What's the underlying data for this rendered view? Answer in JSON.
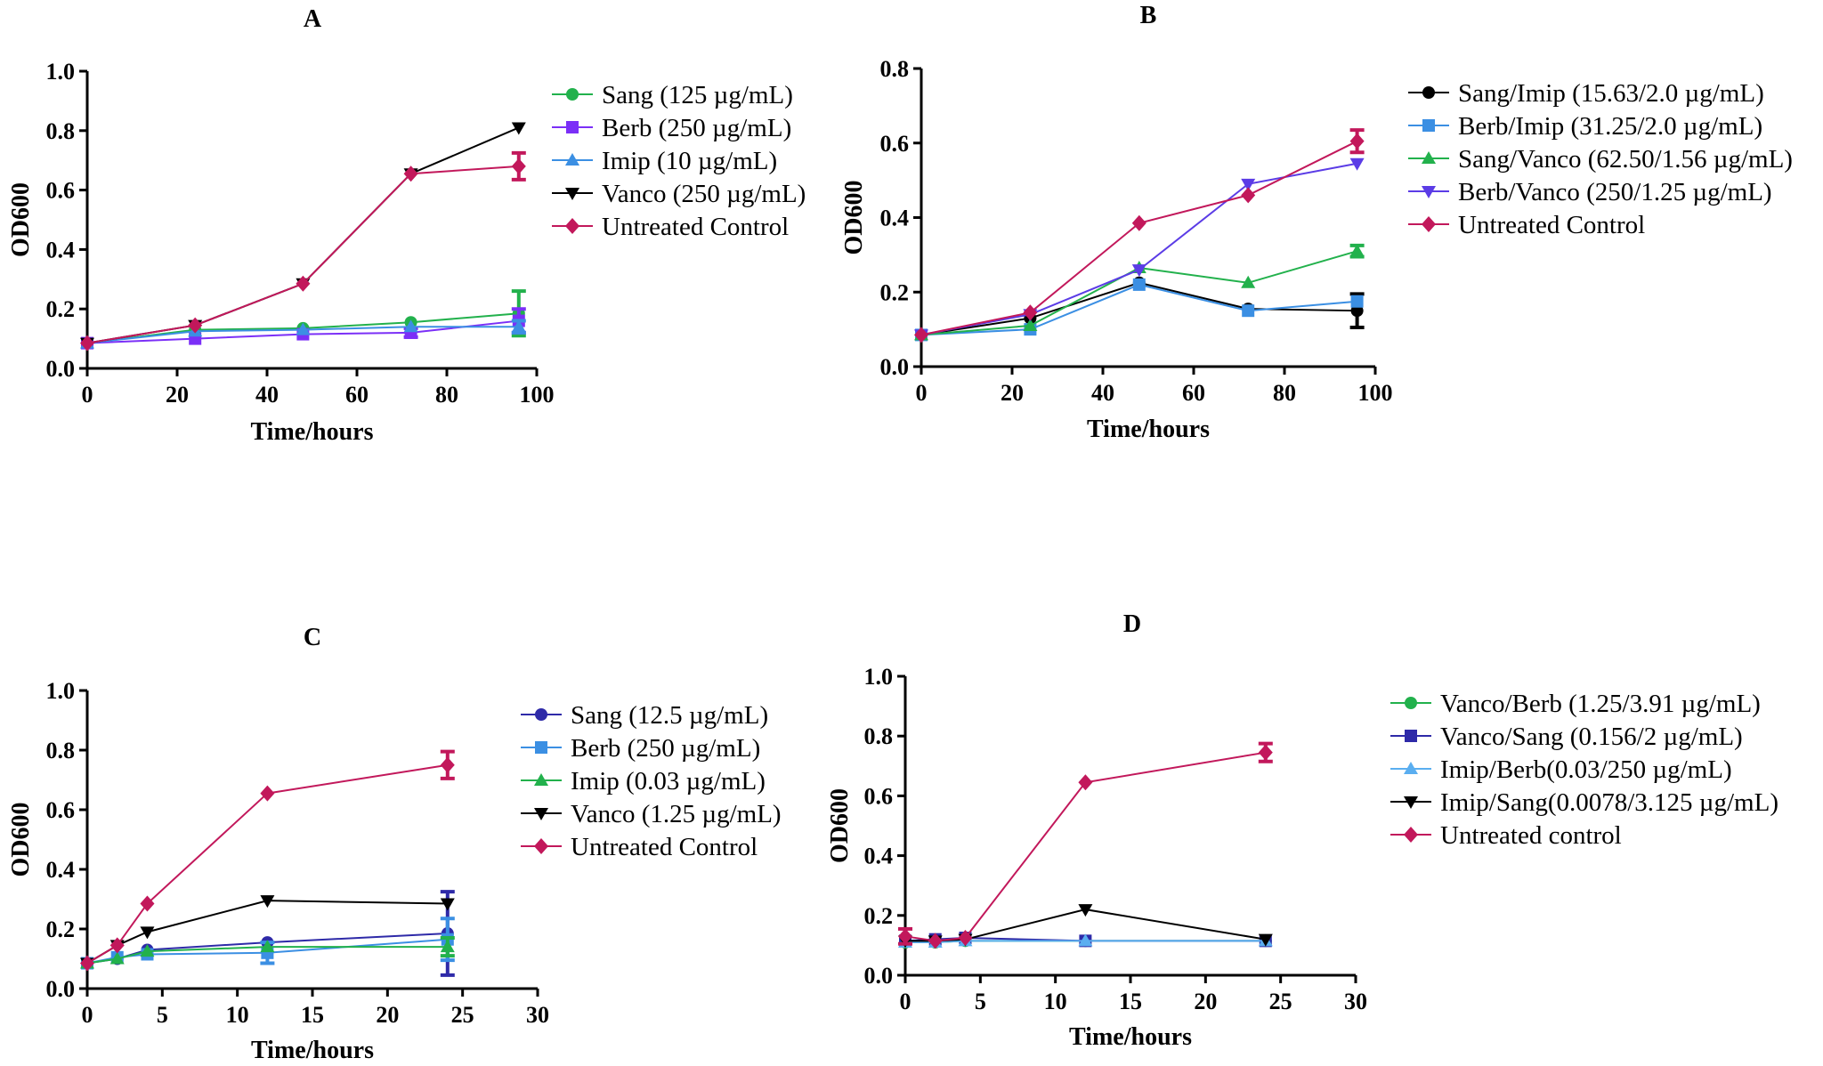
{
  "chart_data": [
    {
      "type": "line",
      "title": "A",
      "xlabel": "Time/hours",
      "ylabel": "OD600",
      "xlim": [
        0,
        100
      ],
      "ylim": [
        0,
        1.0
      ],
      "xticks": [
        "0",
        "20",
        "40",
        "60",
        "80",
        "100"
      ],
      "yticks": [
        "0.0",
        "0.2",
        "0.4",
        "0.6",
        "0.8",
        "1.0"
      ],
      "legend_position": "right",
      "series": [
        {
          "name": "Sang (125 µg/mL)",
          "color": "#22b14c",
          "marker": "circle",
          "x": [
            0,
            24,
            48,
            72,
            96
          ],
          "y": [
            0.085,
            0.13,
            0.135,
            0.155,
            0.185
          ],
          "err": [
            0,
            0,
            0,
            0,
            0.075
          ]
        },
        {
          "name": "Berb (250 µg/mL)",
          "color": "#7b2ff7",
          "marker": "square",
          "x": [
            0,
            24,
            48,
            72,
            96
          ],
          "y": [
            0.085,
            0.1,
            0.115,
            0.12,
            0.16
          ],
          "err": [
            0,
            0,
            0,
            0.015,
            0.04
          ]
        },
        {
          "name": "Imip (10 µg/mL)",
          "color": "#3b8fe3",
          "marker": "triangle-up",
          "x": [
            0,
            24,
            48,
            72,
            96
          ],
          "y": [
            0.085,
            0.125,
            0.13,
            0.14,
            0.14
          ],
          "err": [
            0,
            0,
            0,
            0,
            0.02
          ]
        },
        {
          "name": "Vanco (250 µg/mL)",
          "color": "#000000",
          "marker": "triangle-down",
          "x": [
            0,
            24,
            48,
            72,
            96
          ],
          "y": [
            0.085,
            0.145,
            0.285,
            0.655,
            0.81
          ],
          "err": [
            0,
            0,
            0,
            0,
            0
          ]
        },
        {
          "name": "Untreated Control",
          "color": "#c2185b",
          "marker": "diamond",
          "x": [
            0,
            24,
            48,
            72,
            96
          ],
          "y": [
            0.085,
            0.145,
            0.285,
            0.655,
            0.68
          ],
          "err": [
            0,
            0,
            0,
            0,
            0.045
          ]
        }
      ]
    },
    {
      "type": "line",
      "title": "B",
      "xlabel": "Time/hours",
      "ylabel": "OD600",
      "xlim": [
        0,
        100
      ],
      "ylim": [
        0,
        0.8
      ],
      "xticks": [
        "0",
        "20",
        "40",
        "60",
        "80",
        "100"
      ],
      "yticks": [
        "0.0",
        "0.2",
        "0.4",
        "0.6",
        "0.8"
      ],
      "legend_position": "right",
      "series": [
        {
          "name": "Sang/Imip (15.63/2.0 µg/mL)",
          "color": "#000000",
          "marker": "circle",
          "x": [
            0,
            24,
            48,
            72,
            96
          ],
          "y": [
            0.085,
            0.13,
            0.225,
            0.155,
            0.15
          ],
          "err": [
            0,
            0,
            0,
            0,
            0.045
          ]
        },
        {
          "name": "Berb/Imip (31.25/2.0 µg/mL)",
          "color": "#3b8fe3",
          "marker": "square",
          "x": [
            0,
            24,
            48,
            72,
            96
          ],
          "y": [
            0.085,
            0.1,
            0.22,
            0.15,
            0.175
          ],
          "err": [
            0,
            0,
            0,
            0,
            0
          ]
        },
        {
          "name": "Sang/Vanco (62.50/1.56 µg/mL)",
          "color": "#22b14c",
          "marker": "triangle-up",
          "x": [
            0,
            24,
            48,
            72,
            96
          ],
          "y": [
            0.085,
            0.11,
            0.265,
            0.225,
            0.31
          ],
          "err": [
            0,
            0,
            0,
            0,
            0.015
          ]
        },
        {
          "name": "Berb/Vanco (250/1.25 µg/mL)",
          "color": "#5b3ce6",
          "marker": "triangle-down",
          "x": [
            0,
            24,
            48,
            72,
            96
          ],
          "y": [
            0.085,
            0.14,
            0.26,
            0.49,
            0.545
          ],
          "err": [
            0,
            0,
            0,
            0,
            0
          ]
        },
        {
          "name": "Untreated Control",
          "color": "#c2185b",
          "marker": "diamond",
          "x": [
            0,
            24,
            48,
            72,
            96
          ],
          "y": [
            0.085,
            0.145,
            0.385,
            0.46,
            0.605
          ],
          "err": [
            0,
            0,
            0,
            0,
            0.03
          ]
        }
      ]
    },
    {
      "type": "line",
      "title": "C",
      "xlabel": "Time/hours",
      "ylabel": "OD600",
      "xlim": [
        0,
        30
      ],
      "ylim": [
        0,
        1.0
      ],
      "xticks": [
        "0",
        "5",
        "10",
        "15",
        "20",
        "25",
        "30"
      ],
      "yticks": [
        "0.0",
        "0.2",
        "0.4",
        "0.6",
        "0.8",
        "1.0"
      ],
      "legend_position": "right",
      "series": [
        {
          "name": "Sang (12.5 µg/mL)",
          "color": "#2e2aa8",
          "marker": "circle",
          "x": [
            0,
            2,
            4,
            12,
            24
          ],
          "y": [
            0.085,
            0.1,
            0.13,
            0.155,
            0.185
          ],
          "err": [
            0,
            0,
            0,
            0,
            0.14
          ]
        },
        {
          "name": "Berb (250 µg/mL)",
          "color": "#3b8fe3",
          "marker": "square",
          "x": [
            0,
            2,
            4,
            12,
            24
          ],
          "y": [
            0.085,
            0.105,
            0.115,
            0.12,
            0.165
          ],
          "err": [
            0,
            0,
            0,
            0.035,
            0.07
          ]
        },
        {
          "name": "Imip (0.03 µg/mL)",
          "color": "#22b14c",
          "marker": "triangle-up",
          "x": [
            0,
            2,
            4,
            12,
            24
          ],
          "y": [
            0.085,
            0.1,
            0.125,
            0.14,
            0.14
          ],
          "err": [
            0,
            0,
            0,
            0,
            0.03
          ]
        },
        {
          "name": "Vanco (1.25 µg/mL)",
          "color": "#000000",
          "marker": "triangle-down",
          "x": [
            0,
            2,
            4,
            12,
            24
          ],
          "y": [
            0.085,
            0.145,
            0.19,
            0.295,
            0.285
          ],
          "err": [
            0,
            0,
            0,
            0,
            0
          ]
        },
        {
          "name": "Untreated Control",
          "color": "#c2185b",
          "marker": "diamond",
          "x": [
            0,
            2,
            4,
            12,
            24
          ],
          "y": [
            0.085,
            0.145,
            0.285,
            0.655,
            0.75
          ],
          "err": [
            0,
            0,
            0,
            0,
            0.045
          ]
        }
      ]
    },
    {
      "type": "line",
      "title": "D",
      "xlabel": "Time/hours",
      "ylabel": "OD600",
      "xlim": [
        0,
        30
      ],
      "ylim": [
        0,
        1.0
      ],
      "xticks": [
        "0",
        "5",
        "10",
        "15",
        "20",
        "25",
        "30"
      ],
      "yticks": [
        "0.0",
        "0.2",
        "0.4",
        "0.6",
        "0.8",
        "1.0"
      ],
      "legend_position": "right",
      "series": [
        {
          "name": "Vanco/Berb (1.25/3.91 µg/mL)",
          "color": "#22b14c",
          "marker": "circle",
          "x": [
            0,
            2,
            4,
            12,
            24
          ],
          "y": [
            0.11,
            0.11,
            0.115,
            0.115,
            0.115
          ],
          "err": [
            0,
            0,
            0,
            0,
            0
          ]
        },
        {
          "name": "Vanco/Sang (0.156/2 µg/mL)",
          "color": "#2e2aa8",
          "marker": "square",
          "x": [
            0,
            2,
            4,
            12,
            24
          ],
          "y": [
            0.115,
            0.12,
            0.125,
            0.115,
            0.115
          ],
          "err": [
            0,
            0,
            0,
            0,
            0
          ]
        },
        {
          "name": "Imip/Berb(0.03/250 µg/mL)",
          "color": "#5aaef0",
          "marker": "triangle-up",
          "x": [
            0,
            2,
            4,
            12,
            24
          ],
          "y": [
            0.11,
            0.11,
            0.115,
            0.115,
            0.115
          ],
          "err": [
            0,
            0,
            0,
            0,
            0
          ]
        },
        {
          "name": "Imip/Sang(0.0078/3.125 µg/mL)",
          "color": "#000000",
          "marker": "triangle-down",
          "x": [
            0,
            2,
            4,
            12,
            24
          ],
          "y": [
            0.115,
            0.115,
            0.12,
            0.22,
            0.12
          ],
          "err": [
            0,
            0,
            0,
            0,
            0
          ]
        },
        {
          "name": "Untreated control",
          "color": "#c2185b",
          "marker": "diamond",
          "x": [
            0,
            2,
            4,
            12,
            24
          ],
          "y": [
            0.13,
            0.115,
            0.125,
            0.645,
            0.745
          ],
          "err": [
            0.025,
            0,
            0,
            0,
            0.03
          ]
        }
      ]
    }
  ]
}
